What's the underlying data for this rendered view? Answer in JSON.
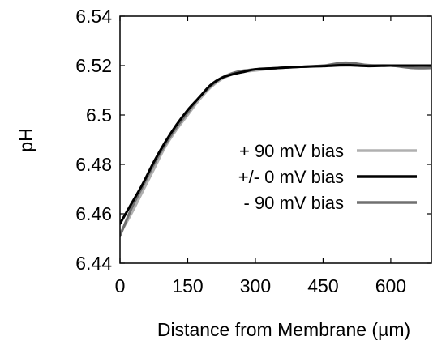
{
  "chart_data": {
    "type": "line",
    "title": "",
    "xlabel": "Distance from Membrane (µm)",
    "ylabel": "pH",
    "xlim": [
      0,
      690
    ],
    "ylim": [
      6.44,
      6.54
    ],
    "xticks": [
      0,
      150,
      300,
      450,
      600
    ],
    "yticks": [
      6.44,
      6.46,
      6.48,
      6.5,
      6.52,
      6.54
    ],
    "ytick_labels": [
      "6.44",
      "6.46",
      "6.48",
      "6.5",
      "6.52",
      "6.54"
    ],
    "grid": false,
    "legend_position": "lower-right",
    "series": [
      {
        "name": "+ 90 mV bias",
        "color": "#b0b0b0",
        "points": [
          [
            0,
            6.452
          ],
          [
            25,
            6.46
          ],
          [
            50,
            6.469
          ],
          [
            75,
            6.478
          ],
          [
            100,
            6.487
          ],
          [
            125,
            6.494
          ],
          [
            150,
            6.5
          ],
          [
            175,
            6.506
          ],
          [
            200,
            6.511
          ],
          [
            225,
            6.5145
          ],
          [
            250,
            6.5165
          ],
          [
            275,
            6.5175
          ],
          [
            300,
            6.518
          ],
          [
            350,
            6.519
          ],
          [
            400,
            6.5195
          ],
          [
            450,
            6.5198
          ],
          [
            500,
            6.52
          ],
          [
            550,
            6.52
          ],
          [
            600,
            6.52
          ],
          [
            650,
            6.5195
          ],
          [
            690,
            6.5195
          ]
        ]
      },
      {
        "name": "+/- 0 mV bias",
        "color": "#000000",
        "points": [
          [
            0,
            6.456
          ],
          [
            25,
            6.464
          ],
          [
            50,
            6.472
          ],
          [
            75,
            6.481
          ],
          [
            100,
            6.489
          ],
          [
            125,
            6.496
          ],
          [
            150,
            6.502
          ],
          [
            175,
            6.507
          ],
          [
            200,
            6.512
          ],
          [
            225,
            6.515
          ],
          [
            250,
            6.5165
          ],
          [
            275,
            6.5175
          ],
          [
            300,
            6.5185
          ],
          [
            350,
            6.519
          ],
          [
            400,
            6.5195
          ],
          [
            450,
            6.5198
          ],
          [
            500,
            6.5202
          ],
          [
            550,
            6.5198
          ],
          [
            600,
            6.52
          ],
          [
            650,
            6.52
          ],
          [
            690,
            6.52
          ]
        ]
      },
      {
        "name": "- 90 mV bias",
        "color": "#707070",
        "points": [
          [
            0,
            6.451
          ],
          [
            25,
            6.462
          ],
          [
            50,
            6.471
          ],
          [
            75,
            6.48
          ],
          [
            100,
            6.488
          ],
          [
            125,
            6.495
          ],
          [
            150,
            6.501
          ],
          [
            175,
            6.507
          ],
          [
            200,
            6.5115
          ],
          [
            225,
            6.515
          ],
          [
            250,
            6.517
          ],
          [
            275,
            6.518
          ],
          [
            300,
            6.5185
          ],
          [
            350,
            6.519
          ],
          [
            400,
            6.5195
          ],
          [
            450,
            6.52
          ],
          [
            500,
            6.5212
          ],
          [
            550,
            6.5202
          ],
          [
            600,
            6.52
          ],
          [
            650,
            6.519
          ],
          [
            690,
            6.519
          ]
        ]
      }
    ]
  }
}
